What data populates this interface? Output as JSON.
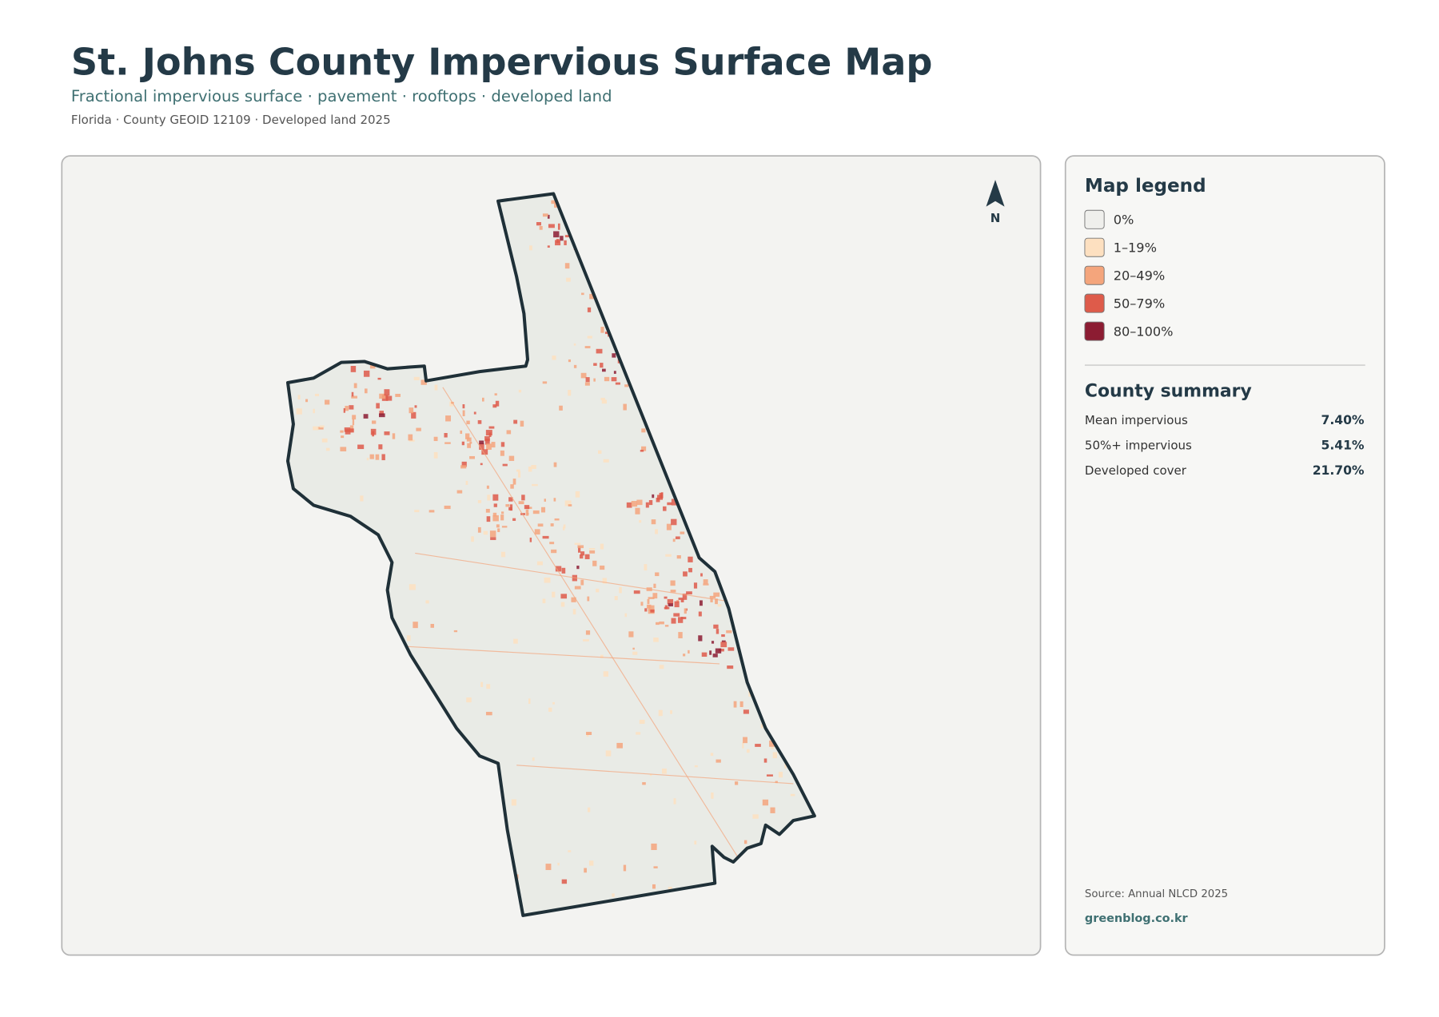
{
  "header": {
    "title": "St. Johns County Impervious Surface Map",
    "subtitle": "Fractional impervious surface · pavement · rooftops · developed land",
    "meta": "Florida · County GEOID 12109 · Developed land 2025"
  },
  "map": {
    "north_label": "N"
  },
  "legend": {
    "title": "Map legend",
    "items": [
      {
        "label": "0%",
        "color": "#efefec"
      },
      {
        "label": "1–19%",
        "color": "#fde0c0"
      },
      {
        "label": "20–49%",
        "color": "#f4a57c"
      },
      {
        "label": "50–79%",
        "color": "#de5b4a"
      },
      {
        "label": "80–100%",
        "color": "#8c1c32"
      }
    ]
  },
  "summary": {
    "title": "County summary",
    "rows": [
      {
        "label": "Mean impervious",
        "value": "7.40%"
      },
      {
        "label": "50%+ impervious",
        "value": "5.41%"
      },
      {
        "label": "Developed cover",
        "value": "21.70%"
      }
    ]
  },
  "footer": {
    "source": "Source: Annual NLCD 2025",
    "site": "greenblog.co.kr"
  }
}
